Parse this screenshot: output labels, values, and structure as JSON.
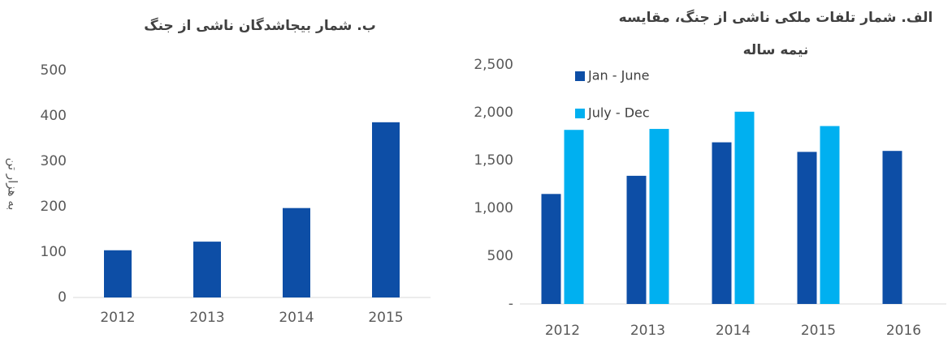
{
  "chart_data": [
    {
      "type": "bar",
      "title": "ب. شمار بیجاشدگان ناشی از جنگ",
      "ylabel": "به هزار تن",
      "categories": [
        "2012",
        "2013",
        "2014",
        "2015"
      ],
      "values": [
        104,
        123,
        197,
        386
      ],
      "color": "#0d4ea6",
      "ylim": [
        0,
        500
      ],
      "yticks": [
        0,
        100,
        200,
        300,
        400,
        500
      ],
      "grid": false
    },
    {
      "type": "grouped_bar",
      "title": "الف. شمار تلفات ملکی ناشی از جنگ، مقایسه نیمه ساله",
      "categories": [
        "2012",
        "2013",
        "2014",
        "2015",
        "2016"
      ],
      "series": [
        {
          "name": "Jan - June",
          "color": "#0d4ea6",
          "values": [
            1150,
            1340,
            1690,
            1590,
            1600
          ]
        },
        {
          "name": "July - Dec",
          "color": "#00b0f0",
          "values": [
            1820,
            1830,
            2010,
            1860,
            null
          ]
        }
      ],
      "ylim": [
        0,
        2500
      ],
      "yticks": [
        {
          "value": 0,
          "label": "-"
        },
        500,
        {
          "value": 1000,
          "label": "1,000"
        },
        {
          "value": 1500,
          "label": "1,500"
        },
        {
          "value": 2000,
          "label": "2,000"
        },
        {
          "value": 2500,
          "label": "2,500"
        }
      ],
      "grid": false,
      "legend": "top-left"
    }
  ]
}
